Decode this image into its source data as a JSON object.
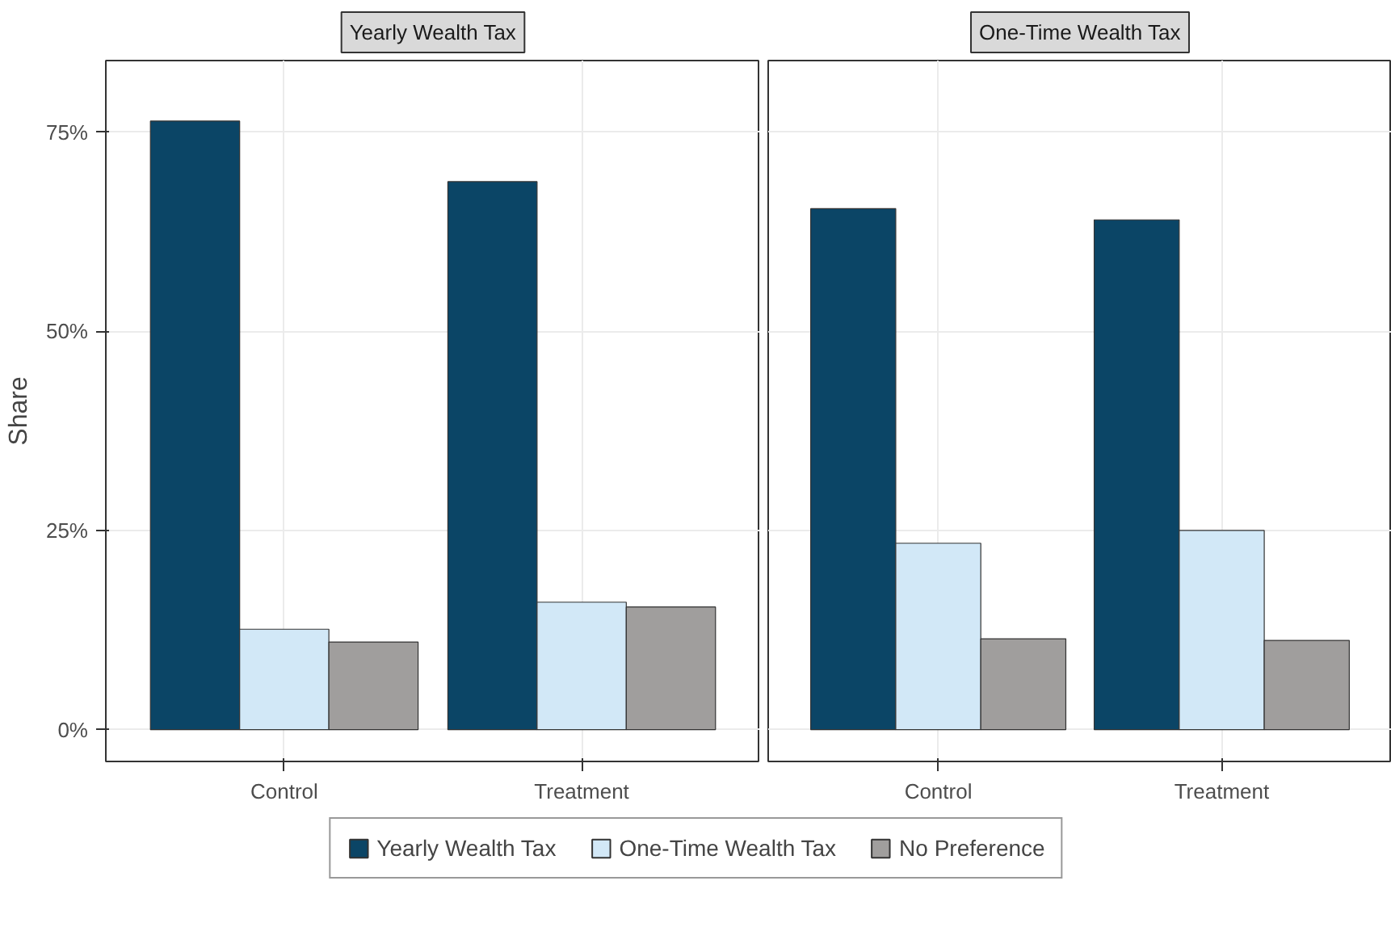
{
  "chart_data": [
    {
      "type": "bar",
      "title": "Yearly Wealth Tax",
      "ylabel": "Share",
      "categories": [
        "Control",
        "Treatment"
      ],
      "series": [
        {
          "name": "Yearly Wealth Tax",
          "color": "#0b4566",
          "values": [
            76.4,
            68.8
          ]
        },
        {
          "name": "One-Time Wealth Tax",
          "color": "#d2e8f7",
          "values": [
            12.6,
            16.0
          ]
        },
        {
          "name": "No Preference",
          "color": "#a09e9d",
          "values": [
            11.0,
            15.4
          ]
        }
      ],
      "ylim": [
        -4,
        84
      ],
      "yticks": [
        {
          "value": 0,
          "label": "0%"
        },
        {
          "value": 25,
          "label": "25%"
        },
        {
          "value": 50,
          "label": "50%"
        },
        {
          "value": 75,
          "label": "75%"
        }
      ],
      "grid": true,
      "legend": "bottom"
    },
    {
      "type": "bar",
      "title": "One-Time Wealth Tax",
      "categories": [
        "Control",
        "Treatment"
      ],
      "series": [
        {
          "color": "#0b4566",
          "values": [
            65.4,
            64.0
          ]
        },
        {
          "color": "#d2e8f7",
          "values": [
            23.4,
            25.0
          ]
        },
        {
          "color": "#a09e9d",
          "values": [
            11.4,
            11.2
          ]
        }
      ],
      "ylim": [
        -4,
        84
      ],
      "yticks": [
        {
          "value": 0,
          "label": null
        },
        {
          "value": 25,
          "label": null
        },
        {
          "value": 50,
          "label": null
        },
        {
          "value": 75,
          "label": null
        }
      ],
      "grid": true,
      "tick_labels": "x"
    }
  ]
}
